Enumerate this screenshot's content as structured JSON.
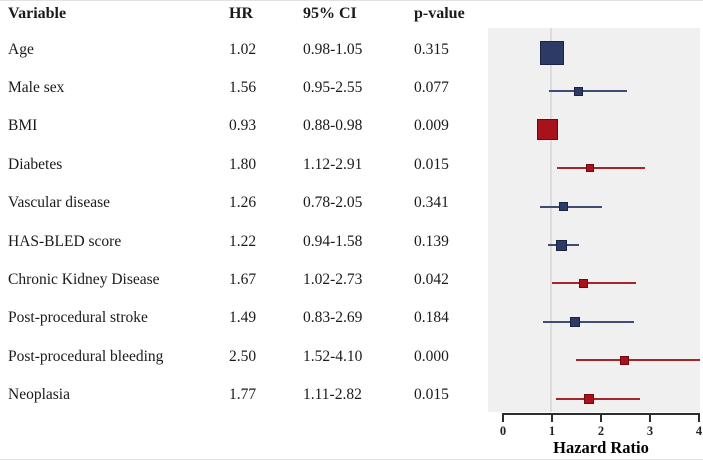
{
  "table": {
    "headers": {
      "variable": "Variable",
      "hr": "HR",
      "ci": "95% CI",
      "p": "p-value"
    }
  },
  "chart_data": {
    "type": "scatter",
    "variant": "forest-plot",
    "xlabel": "Hazard Ratio",
    "xlim": [
      0,
      4
    ],
    "x_ticks": [
      "0",
      "1",
      "2",
      "3",
      "4"
    ],
    "reference_line_x": 1,
    "grid": false,
    "legend": "none",
    "plot_bg": "#f1f0f1",
    "reference_line_color": "#dddcdd",
    "axis_color": "#2e2e2e",
    "colors": {
      "significant_fill": "#a8121a",
      "significant_border": "#70090f",
      "significant_line": "#a8242a",
      "nonsignificant_fill": "#2d3a66",
      "nonsignificant_border": "#1a2342",
      "nonsignificant_line": "#3f4c74"
    },
    "rows": [
      {
        "variable": "Age",
        "hr": 1.02,
        "hr_text": "1.02",
        "ci_low": 0.98,
        "ci_high": 1.05,
        "ci_text": "0.98-1.05",
        "p_text": "0.315",
        "significant": false,
        "marker_size": 24
      },
      {
        "variable": "Male sex",
        "hr": 1.56,
        "hr_text": "1.56",
        "ci_low": 0.95,
        "ci_high": 2.55,
        "ci_text": "0.95-2.55",
        "p_text": "0.077",
        "significant": false,
        "marker_size": 9
      },
      {
        "variable": "BMI",
        "hr": 0.93,
        "hr_text": "0.93",
        "ci_low": 0.88,
        "ci_high": 0.98,
        "ci_text": "0.88-0.98",
        "p_text": "0.009",
        "significant": true,
        "marker_size": 21
      },
      {
        "variable": "Diabetes",
        "hr": 1.8,
        "hr_text": "1.80",
        "ci_low": 1.12,
        "ci_high": 2.91,
        "ci_text": "1.12-2.91",
        "p_text": "0.015",
        "significant": true,
        "marker_size": 8
      },
      {
        "variable": "Vascular disease",
        "hr": 1.26,
        "hr_text": "1.26",
        "ci_low": 0.78,
        "ci_high": 2.05,
        "ci_text": "0.78-2.05",
        "p_text": "0.341",
        "significant": false,
        "marker_size": 9
      },
      {
        "variable": "HAS-BLED score",
        "hr": 1.22,
        "hr_text": "1.22",
        "ci_low": 0.94,
        "ci_high": 1.58,
        "ci_text": "0.94-1.58",
        "p_text": "0.139",
        "significant": false,
        "marker_size": 11
      },
      {
        "variable": "Chronic Kidney Disease",
        "hr": 1.67,
        "hr_text": "1.67",
        "ci_low": 1.02,
        "ci_high": 2.73,
        "ci_text": "1.02-2.73",
        "p_text": "0.042",
        "significant": true,
        "marker_size": 9
      },
      {
        "variable": "Post-procedural stroke",
        "hr": 1.49,
        "hr_text": "1.49",
        "ci_low": 0.83,
        "ci_high": 2.69,
        "ci_text": "0.83-2.69",
        "p_text": "0.184",
        "significant": false,
        "marker_size": 10
      },
      {
        "variable": "Post-procedural bleeding",
        "hr": 2.5,
        "hr_text": "2.50",
        "ci_low": 1.52,
        "ci_high": 4.1,
        "ci_text": "1.52-4.10",
        "p_text": "0.000",
        "significant": true,
        "marker_size": 9
      },
      {
        "variable": "Neoplasia",
        "hr": 1.77,
        "hr_text": "1.77",
        "ci_low": 1.11,
        "ci_high": 2.82,
        "ci_text": "1.11-2.82",
        "p_text": "0.015",
        "significant": true,
        "marker_size": 10
      }
    ]
  }
}
